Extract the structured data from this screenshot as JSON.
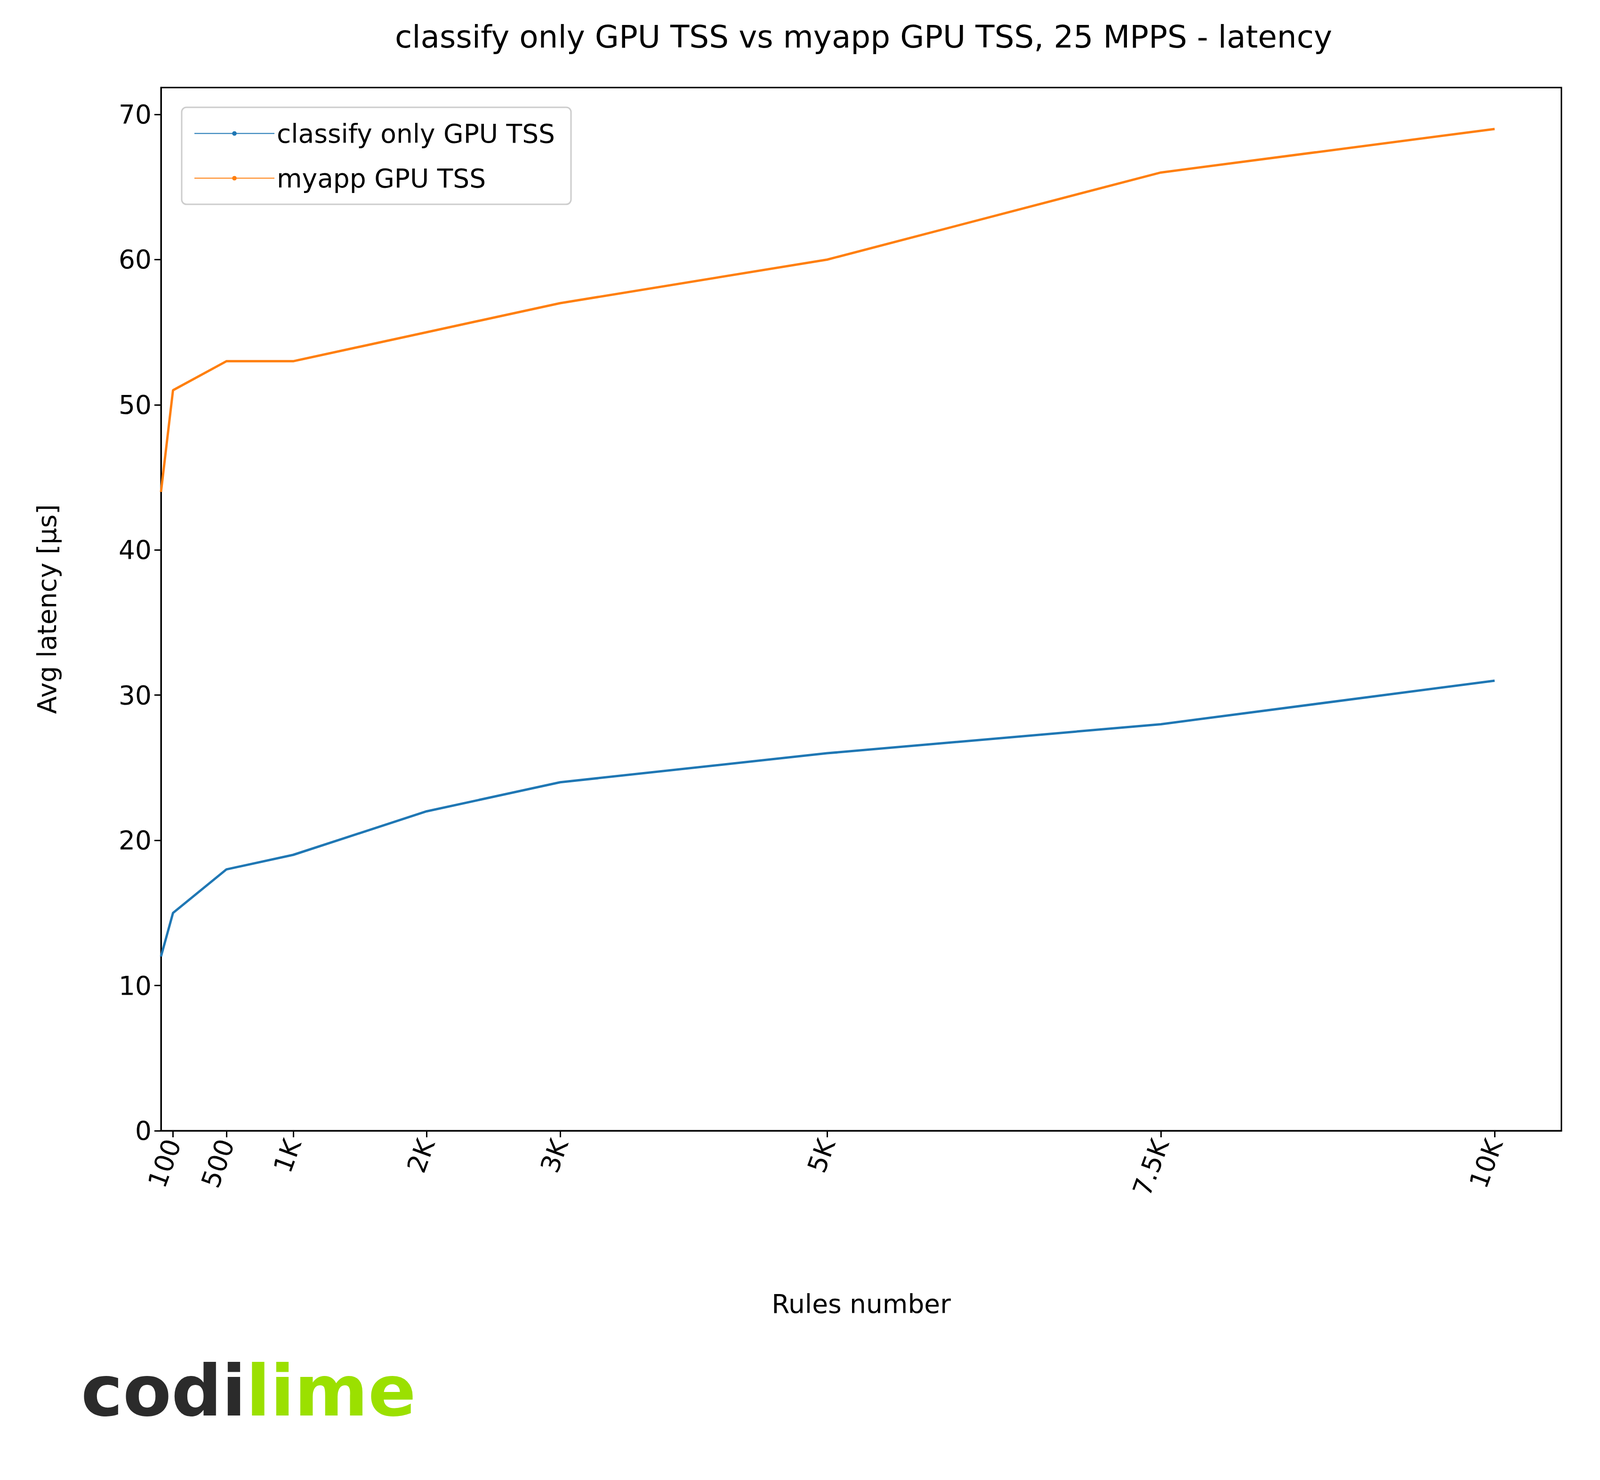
{
  "chart_data": {
    "type": "line",
    "title": "classify only GPU TSS vs myapp GPU TSS, 25 MPPS - latency",
    "xlabel": "Rules number",
    "ylabel": "Avg latency [μs]",
    "x": [
      10,
      100,
      500,
      1000,
      2000,
      3000,
      5000,
      7500,
      10000
    ],
    "series": [
      {
        "name": "classify only GPU TSS",
        "color": "#1f77b4",
        "values": [
          12,
          15,
          18,
          19,
          22,
          24,
          26,
          28,
          31
        ]
      },
      {
        "name": "myapp GPU TSS",
        "color": "#ff7f0e",
        "values": [
          44,
          51,
          53,
          53,
          55,
          57,
          60,
          66,
          69
        ]
      }
    ],
    "xlim": [
      10,
      10500
    ],
    "xticks": [
      100,
      500,
      {
        "value": 1000,
        "label": "1K"
      },
      {
        "value": 2000,
        "label": "2K"
      },
      {
        "value": 3000,
        "label": "3K"
      },
      {
        "value": 5000,
        "label": "5K"
      },
      {
        "value": 7500,
        "label": "7.5K"
      },
      {
        "value": 10000,
        "label": "10K"
      }
    ],
    "ylim": [
      0,
      71.85
    ],
    "yticks": [
      0,
      10,
      20,
      30,
      40,
      50,
      60,
      70
    ],
    "grid": false,
    "legend": "upper left",
    "annotations": [
      "codi",
      "lime"
    ]
  }
}
